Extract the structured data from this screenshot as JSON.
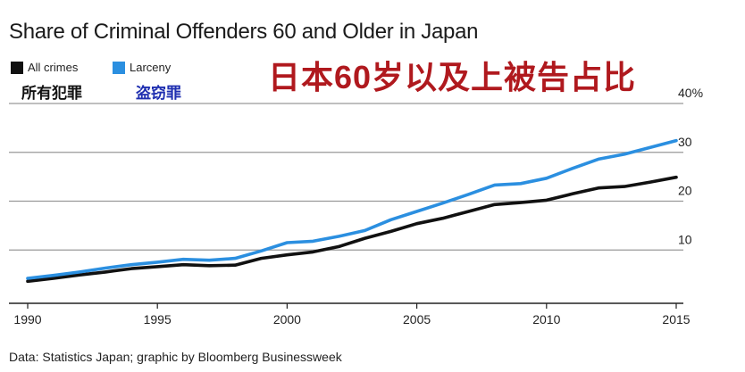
{
  "title": "Share of Criminal Offenders 60 and Older in Japan",
  "cn_title": "日本60岁以及上被告占比",
  "source": "Data: Statistics Japan; graphic by Bloomberg Businessweek",
  "legend": [
    {
      "label": "All crimes",
      "cn": "所有犯罪",
      "color": "#111111",
      "cn_color": "#111111"
    },
    {
      "label": "Larceny",
      "cn": "盗窃罪",
      "color": "#2b8fe0",
      "cn_color": "#1f2fb0"
    }
  ],
  "chart_data": {
    "type": "line",
    "title": "Share of Criminal Offenders 60 and Older in Japan",
    "x": [
      1990,
      1991,
      1992,
      1993,
      1994,
      1995,
      1996,
      1997,
      1998,
      1999,
      2000,
      2001,
      2002,
      2003,
      2004,
      2005,
      2006,
      2007,
      2008,
      2009,
      2010,
      2011,
      2012,
      2013,
      2014,
      2015
    ],
    "series": [
      {
        "name": "All crimes",
        "color": "#111111",
        "values": [
          3.6,
          4.2,
          4.9,
          5.5,
          6.2,
          6.6,
          7.0,
          6.8,
          6.9,
          8.3,
          9.0,
          9.6,
          10.7,
          12.4,
          13.8,
          15.4,
          16.5,
          17.9,
          19.3,
          19.7,
          20.2,
          21.5,
          22.7,
          23.0,
          23.9,
          24.9
        ]
      },
      {
        "name": "Larceny",
        "color": "#2b8fe0",
        "values": [
          4.2,
          4.8,
          5.5,
          6.3,
          7.0,
          7.5,
          8.1,
          7.9,
          8.3,
          9.8,
          11.5,
          11.8,
          12.8,
          14.0,
          16.2,
          17.9,
          19.6,
          21.4,
          23.3,
          23.6,
          24.7,
          26.7,
          28.6,
          29.6,
          31.0,
          32.4
        ]
      }
    ],
    "xticks": [
      "1990",
      "1995",
      "2000",
      "2005",
      "2010",
      "2015"
    ],
    "yticks": [
      "10",
      "20",
      "30",
      "40%"
    ],
    "ytick_values": [
      10,
      20,
      30,
      40
    ],
    "xlim": [
      1990,
      2015
    ],
    "ylim": [
      0,
      40
    ],
    "grid": true
  }
}
